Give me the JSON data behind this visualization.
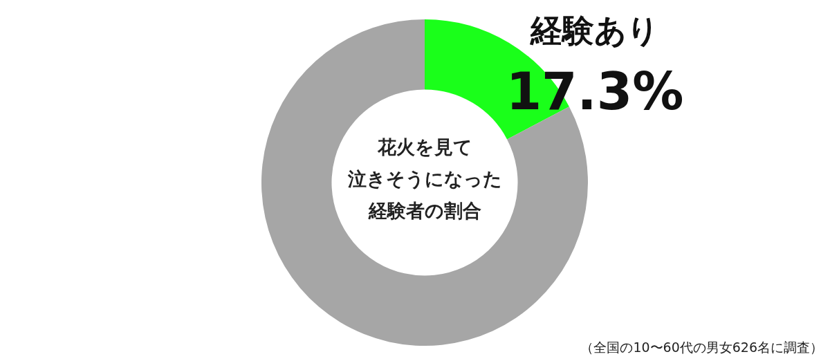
{
  "chart_data": {
    "type": "donut",
    "title": "花火を見て泣きそうになった経験者の割合",
    "categories": [
      "経験あり",
      null
    ],
    "values": [
      17.3,
      82.7
    ],
    "colors": [
      "#1aff1a",
      "#a6a6a6"
    ],
    "value_labels": [
      "17.3%",
      null
    ],
    "legend": false,
    "annotations": [
      "（全国の10〜60代の男女626名に調査）"
    ]
  }
}
